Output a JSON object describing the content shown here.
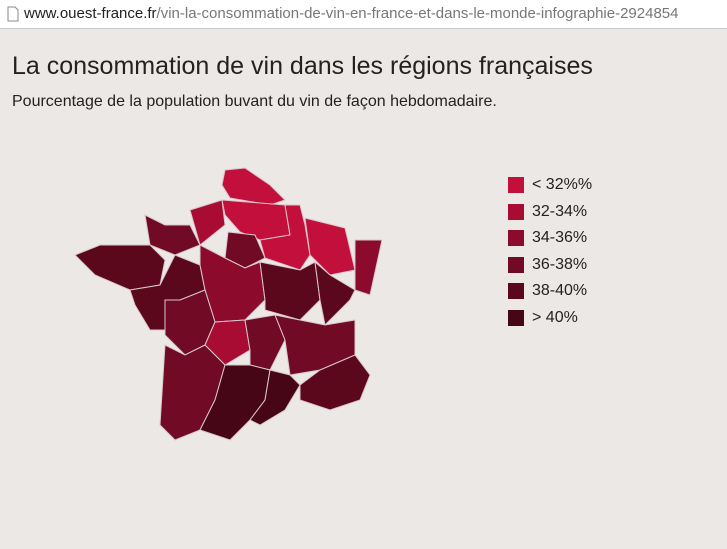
{
  "url": {
    "domain": "www.ouest-france.fr",
    "path": "/vin-la-consommation-de-vin-en-france-et-dans-le-monde-infographie-2924854"
  },
  "title": "La consommation de vin dans les régions françaises",
  "subtitle": "Pourcentage de la population buvant du vin de façon hebdomadaire.",
  "legend": [
    {
      "label": "< 32%%",
      "color": "#c20f3b"
    },
    {
      "label": "32-34%",
      "color": "#a90c33"
    },
    {
      "label": "34-36%",
      "color": "#8c0b2c"
    },
    {
      "label": "36-38%",
      "color": "#700a25"
    },
    {
      "label": "38-40%",
      "color": "#5b081d"
    },
    {
      "label": "> 40%",
      "color": "#470615"
    }
  ]
}
